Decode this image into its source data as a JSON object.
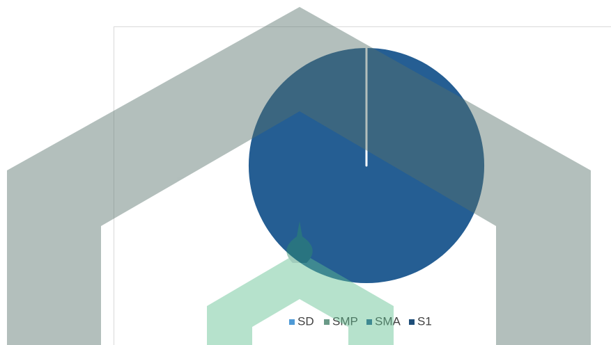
{
  "chart_data": {
    "type": "pie",
    "categories": [
      "SD",
      "SMP",
      "SMA",
      "S1"
    ],
    "values": [
      0,
      0,
      100,
      0
    ],
    "colors": [
      "#4f9ad6",
      "#6b9a88",
      "#255e93",
      "#1f4e79"
    ],
    "legend": "bottom"
  }
}
